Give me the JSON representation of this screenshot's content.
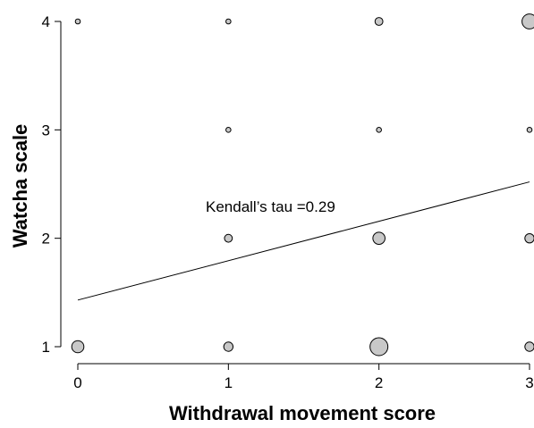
{
  "chart_data": {
    "type": "scatter",
    "title": "",
    "xlabel": "Withdrawal movement score",
    "ylabel": "Watcha scale",
    "xlim": [
      0,
      3
    ],
    "ylim": [
      1,
      4
    ],
    "x_ticks": [
      0,
      1,
      2,
      3
    ],
    "y_ticks": [
      1,
      2,
      3,
      4
    ],
    "points": [
      {
        "x": 0,
        "y": 1,
        "size": 3
      },
      {
        "x": 1,
        "y": 1,
        "size": 2
      },
      {
        "x": 2,
        "y": 1,
        "size": 5
      },
      {
        "x": 3,
        "y": 1,
        "size": 2
      },
      {
        "x": 1,
        "y": 2,
        "size": 1.5
      },
      {
        "x": 2,
        "y": 2,
        "size": 3
      },
      {
        "x": 3,
        "y": 2,
        "size": 2
      },
      {
        "x": 1,
        "y": 3,
        "size": 0.5
      },
      {
        "x": 2,
        "y": 3,
        "size": 0.5
      },
      {
        "x": 3,
        "y": 3,
        "size": 0.5
      },
      {
        "x": 0,
        "y": 4,
        "size": 0.5
      },
      {
        "x": 1,
        "y": 4,
        "size": 0.5
      },
      {
        "x": 2,
        "y": 4,
        "size": 1.5
      },
      {
        "x": 3,
        "y": 4,
        "size": 4
      }
    ],
    "trend_line": {
      "x": [
        0,
        3
      ],
      "y": [
        1.43,
        2.52
      ]
    },
    "annotation": "Kendall’s tau =0.29",
    "grid": false,
    "legend": "none",
    "colors": {
      "marker_fill": "#c8c8c8",
      "marker_stroke": "#000000",
      "line": "#000000"
    }
  }
}
